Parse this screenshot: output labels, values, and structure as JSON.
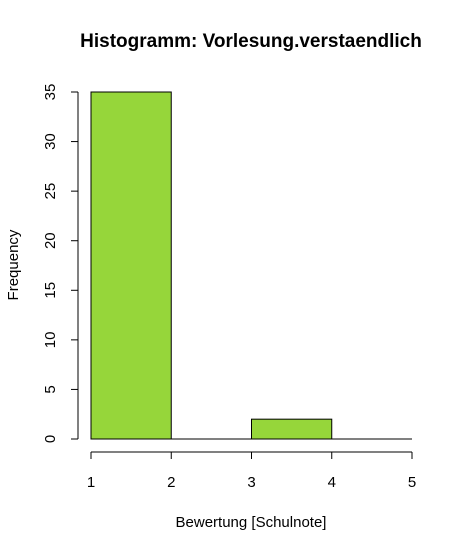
{
  "chart_data": {
    "type": "bar",
    "title": "Histogramm: Vorlesung.verstaendlich",
    "xlabel": "Bewertung [Schulnote]",
    "ylabel": "Frequency",
    "bins": [
      {
        "from": 1,
        "to": 2,
        "count": 35
      },
      {
        "from": 2,
        "to": 3,
        "count": 0
      },
      {
        "from": 3,
        "to": 4,
        "count": 2
      },
      {
        "from": 4,
        "to": 5,
        "count": 0
      }
    ],
    "xlim": [
      1,
      5
    ],
    "ylim": [
      0,
      35
    ],
    "x_ticks": [
      "1",
      "2",
      "3",
      "4",
      "5"
    ],
    "y_ticks": [
      "0",
      "5",
      "10",
      "15",
      "20",
      "25",
      "30",
      "35"
    ],
    "bar_color": "#96d63a",
    "grid": false,
    "legend": "none"
  }
}
